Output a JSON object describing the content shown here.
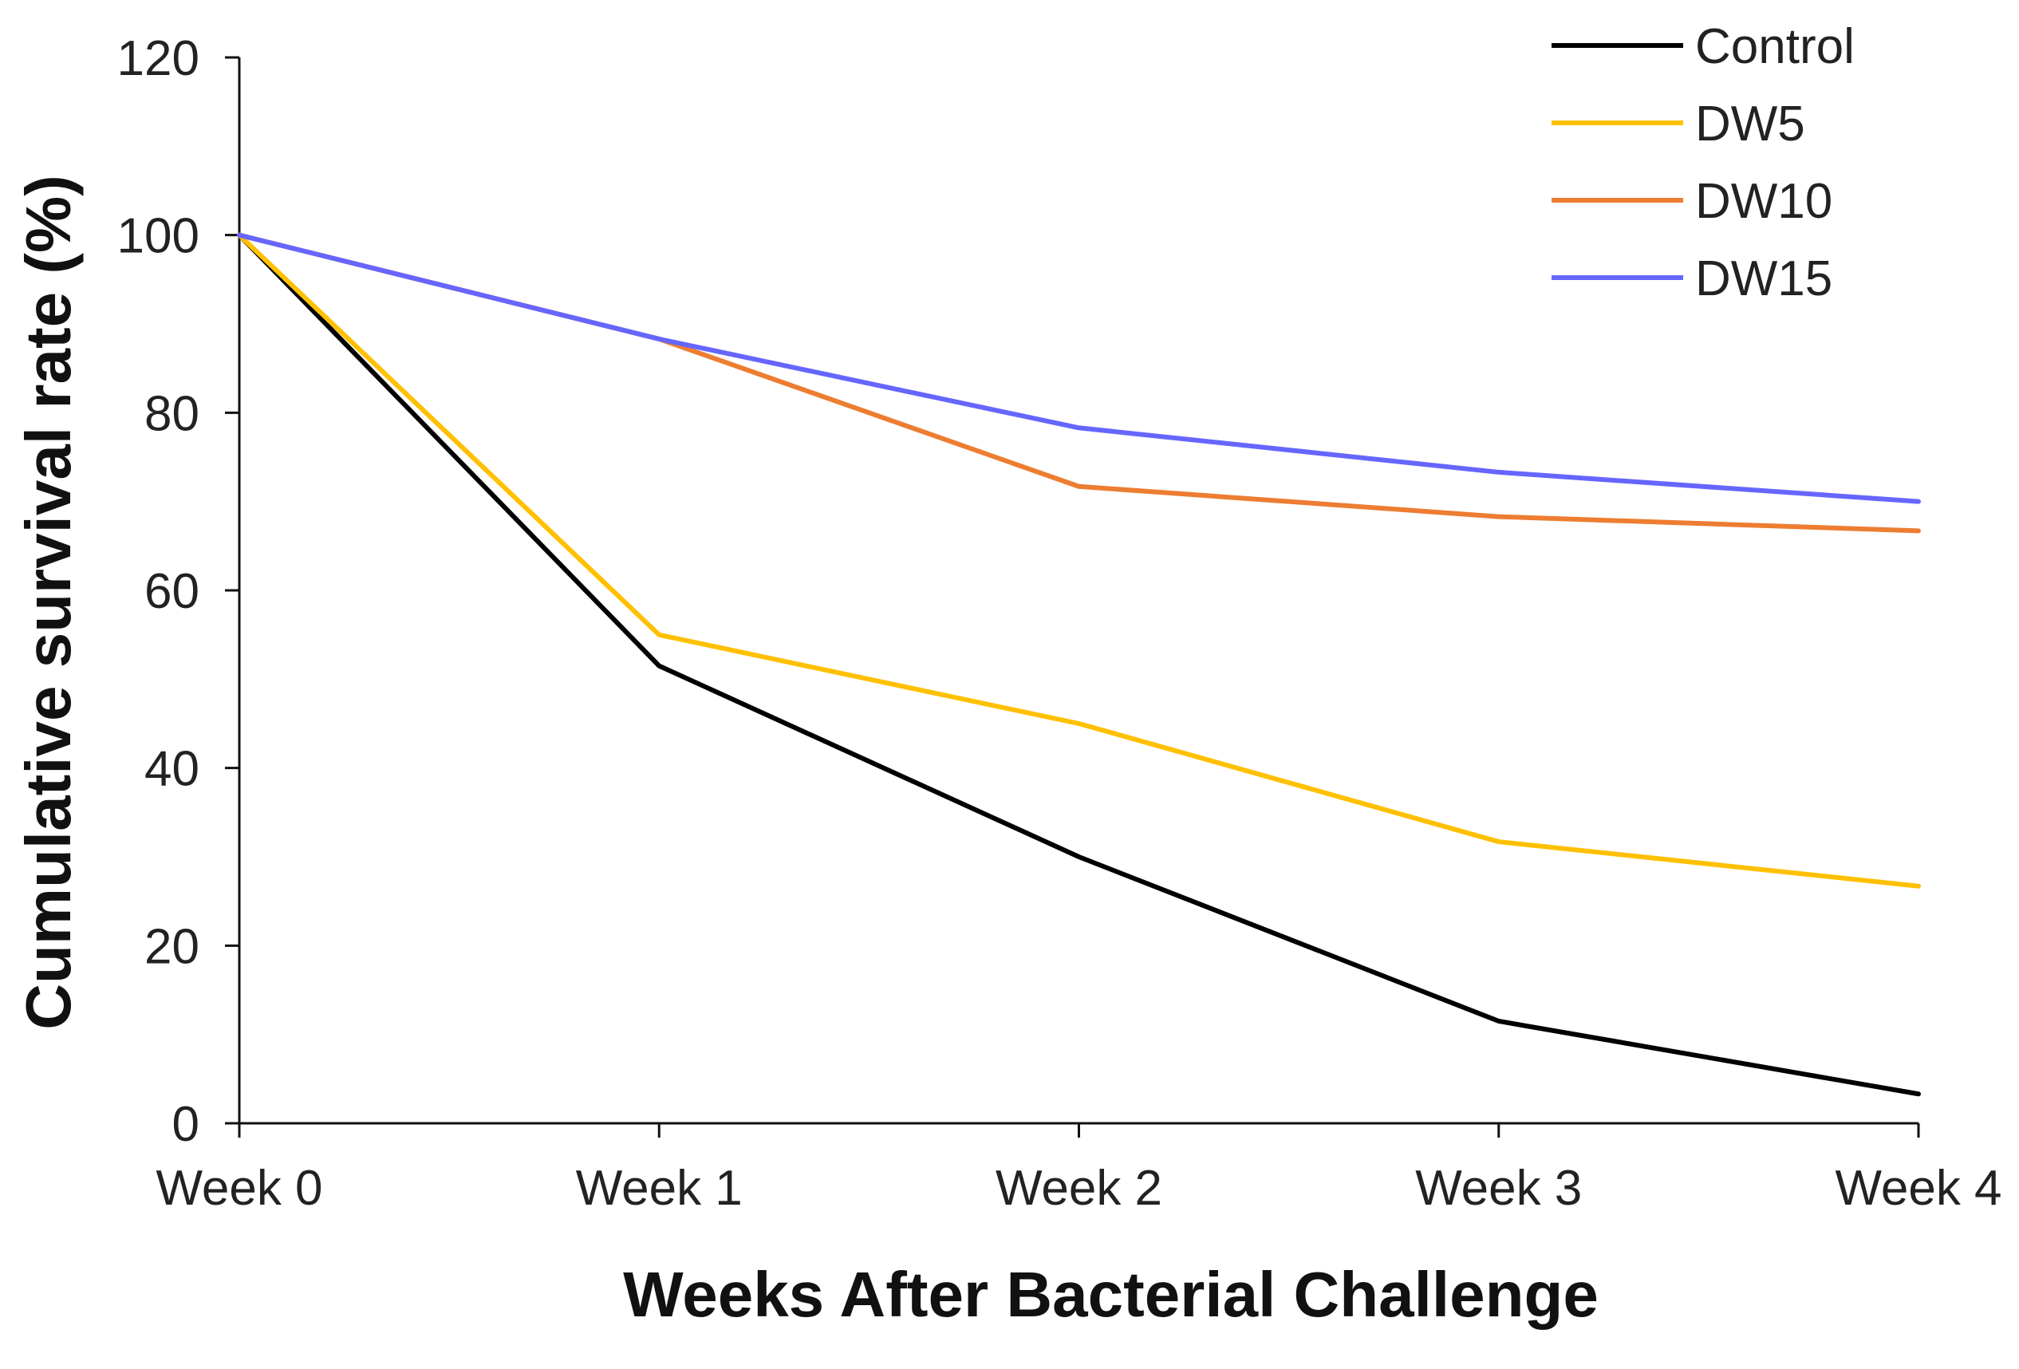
{
  "chart_data": {
    "type": "line",
    "title": "",
    "xlabel": "Weeks After Bacterial Challenge",
    "ylabel": "Cumulative survival rate (%)",
    "categories": [
      "Week 0",
      "Week 1",
      "Week 2",
      "Week 3",
      "Week 4"
    ],
    "ylim": [
      0,
      120
    ],
    "yticks": [
      0,
      20,
      40,
      60,
      80,
      100,
      120
    ],
    "grid": false,
    "legend_position": "top-right",
    "series": [
      {
        "name": "Control",
        "color": "#000000",
        "values": [
          100,
          51.5,
          30,
          11.5,
          3.3
        ]
      },
      {
        "name": "DW5",
        "color": "#FFC000",
        "values": [
          100,
          55,
          45,
          31.7,
          26.7
        ]
      },
      {
        "name": "DW10",
        "color": "#ED7D31",
        "values": [
          100,
          88.3,
          71.7,
          68.3,
          66.7
        ]
      },
      {
        "name": "DW15",
        "color": "#6666FF",
        "values": [
          100,
          88.3,
          78.3,
          73.3,
          70
        ]
      }
    ]
  }
}
